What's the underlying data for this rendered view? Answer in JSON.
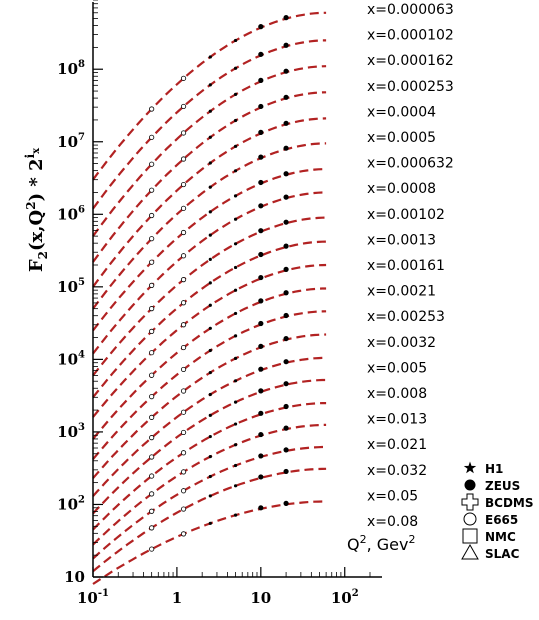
{
  "chart_data": {
    "type": "line",
    "title": "",
    "ylabel": "F2(x,Q2) * 2^ix",
    "ylabel_parts": {
      "main": "F",
      "sub": "2",
      "args": "(x,Q",
      "sup": "2",
      "close": ") * 2",
      "exp": "i",
      "exp_sub": "x"
    },
    "xlabel": "Q2, Gev2",
    "xlabel_parts": {
      "main": "Q",
      "sup": "2",
      "mid": ", Gev",
      "sup2": "2"
    },
    "x_scale": "log",
    "y_scale": "log",
    "xlim": [
      0.1,
      200
    ],
    "ylim": [
      10,
      900000000
    ],
    "x_ticks": [
      {
        "value": 0.1,
        "base": "10",
        "exp": "-1"
      },
      {
        "value": 1,
        "base": "1",
        "exp": ""
      },
      {
        "value": 10,
        "base": "10",
        "exp": ""
      },
      {
        "value": 100,
        "base": "10",
        "exp": "2"
      }
    ],
    "y_ticks": [
      {
        "value": 10,
        "base": "10",
        "exp": ""
      },
      {
        "value": 100,
        "base": "10",
        "exp": "2"
      },
      {
        "value": 1000,
        "base": "10",
        "exp": "3"
      },
      {
        "value": 10000,
        "base": "10",
        "exp": "4"
      },
      {
        "value": 100000,
        "base": "10",
        "exp": "5"
      },
      {
        "value": 1000000,
        "base": "10",
        "exp": "6"
      },
      {
        "value": 10000000,
        "base": "10",
        "exp": "7"
      },
      {
        "value": 100000000,
        "base": "10",
        "exp": "8"
      }
    ],
    "curve_color": "#b22222",
    "curves": [
      {
        "label": "x=0.000063",
        "y_start": 3000000,
        "y_end": 600000000
      },
      {
        "label": "x=0.000102",
        "y_start": 1200000,
        "y_end": 250000000
      },
      {
        "label": "x=0.000162",
        "y_start": 500000,
        "y_end": 110000000
      },
      {
        "label": "x=0.000253",
        "y_start": 220000,
        "y_end": 48000000
      },
      {
        "label": "x=0.0004",
        "y_start": 100000,
        "y_end": 21000000
      },
      {
        "label": "x=0.0005",
        "y_start": 50000,
        "y_end": 9500000
      },
      {
        "label": "x=0.000632",
        "y_start": 25000,
        "y_end": 4200000
      },
      {
        "label": "x=0.0008",
        "y_start": 12000,
        "y_end": 2000000
      },
      {
        "label": "x=0.00102",
        "y_start": 6000,
        "y_end": 900000
      },
      {
        "label": "x=0.0013",
        "y_start": 3000,
        "y_end": 420000
      },
      {
        "label": "x=0.00161",
        "y_start": 1600,
        "y_end": 200000
      },
      {
        "label": "x=0.0021",
        "y_start": 800,
        "y_end": 95000
      },
      {
        "label": "x=0.00253",
        "y_start": 420,
        "y_end": 46000
      },
      {
        "label": "x=0.0032",
        "y_start": 230,
        "y_end": 22000
      },
      {
        "label": "x=0.005",
        "y_start": 130,
        "y_end": 10500
      },
      {
        "label": "x=0.008",
        "y_start": 75,
        "y_end": 5200
      },
      {
        "label": "x=0.013",
        "y_start": 45,
        "y_end": 2500
      },
      {
        "label": "x=0.021",
        "y_start": 28,
        "y_end": 1250
      },
      {
        "label": "x=0.032",
        "y_start": 18,
        "y_end": 620
      },
      {
        "label": "x=0.05",
        "y_start": 12,
        "y_end": 310
      },
      {
        "label": "x=0.08",
        "y_start": 8,
        "y_end": 110
      }
    ],
    "legend_position": "right",
    "legend": [
      {
        "label": "H1",
        "marker": "star"
      },
      {
        "label": "ZEUS",
        "marker": "filled-circle"
      },
      {
        "label": "BCDMS",
        "marker": "cross"
      },
      {
        "label": "E665",
        "marker": "open-circle"
      },
      {
        "label": "NMC",
        "marker": "open-square"
      },
      {
        "label": "SLAC",
        "marker": "open-triangle"
      }
    ]
  }
}
